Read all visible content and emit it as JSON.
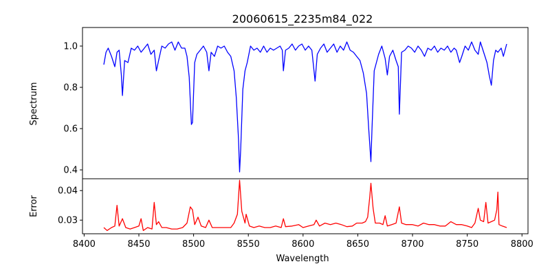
{
  "chart_data": [
    {
      "type": "line",
      "title": "20060615_2235m84_022",
      "xlabel": "",
      "ylabel": "Spectrum",
      "xlim": [
        8398.5,
        8805.5
      ],
      "ylim": [
        0.357,
        1.09
      ],
      "yticks": [
        0.4,
        0.6,
        0.8,
        1.0
      ],
      "ytick_labels": [
        "0.4",
        "0.6",
        "0.8",
        "1.0"
      ],
      "color": "#0000ff",
      "x": [
        8418,
        8420,
        8422,
        8425,
        8428,
        8430,
        8432,
        8434,
        8435,
        8437,
        8440,
        8443,
        8446,
        8449,
        8452,
        8455,
        8458,
        8461,
        8464,
        8466,
        8468,
        8471,
        8474,
        8477,
        8480,
        8483,
        8486,
        8489,
        8492,
        8494,
        8496,
        8498,
        8499,
        8501,
        8503,
        8506,
        8509,
        8512,
        8514,
        8516,
        8519,
        8522,
        8525,
        8528,
        8531,
        8534,
        8537,
        8539,
        8541,
        8542,
        8543,
        8545,
        8547,
        8549,
        8552,
        8555,
        8558,
        8561,
        8564,
        8567,
        8570,
        8573,
        8576,
        8579,
        8581,
        8582,
        8584,
        8587,
        8590,
        8593,
        8596,
        8599,
        8602,
        8605,
        8608,
        8611,
        8613,
        8616,
        8619,
        8622,
        8625,
        8628,
        8631,
        8634,
        8637,
        8640,
        8643,
        8646,
        8649,
        8652,
        8655,
        8658,
        8660,
        8662,
        8663,
        8665,
        8667,
        8669,
        8672,
        8675,
        8677,
        8679,
        8682,
        8685,
        8687,
        8688,
        8690,
        8693,
        8696,
        8699,
        8702,
        8705,
        8708,
        8711,
        8714,
        8717,
        8720,
        8723,
        8726,
        8729,
        8732,
        8735,
        8738,
        8740,
        8743,
        8745,
        8748,
        8751,
        8754,
        8757,
        8760,
        8762,
        8765,
        8768,
        8770,
        8772,
        8774,
        8776,
        8778,
        8781,
        8783,
        8786
      ],
      "y": [
        0.91,
        0.97,
        0.99,
        0.95,
        0.9,
        0.97,
        0.98,
        0.86,
        0.76,
        0.93,
        0.92,
        0.99,
        0.98,
        1.0,
        0.97,
        0.99,
        1.01,
        0.96,
        0.98,
        0.88,
        0.93,
        1.0,
        0.99,
        1.01,
        1.02,
        0.98,
        1.02,
        0.99,
        0.99,
        0.95,
        0.85,
        0.62,
        0.63,
        0.92,
        0.96,
        0.98,
        1.0,
        0.97,
        0.88,
        0.97,
        0.95,
        1.0,
        0.99,
        1.0,
        0.97,
        0.95,
        0.88,
        0.75,
        0.55,
        0.39,
        0.5,
        0.79,
        0.88,
        0.92,
        1.0,
        0.98,
        0.99,
        0.97,
        1.0,
        0.97,
        0.99,
        0.98,
        0.99,
        1.0,
        0.98,
        0.88,
        0.98,
        0.99,
        1.01,
        0.98,
        1.0,
        1.01,
        0.98,
        1.0,
        0.98,
        0.83,
        0.96,
        0.99,
        1.01,
        0.97,
        0.99,
        1.01,
        0.97,
        1.0,
        0.98,
        1.02,
        0.98,
        0.97,
        0.95,
        0.93,
        0.87,
        0.77,
        0.6,
        0.44,
        0.6,
        0.88,
        0.92,
        0.96,
        1.0,
        0.94,
        0.86,
        0.95,
        0.98,
        0.93,
        0.9,
        0.67,
        0.97,
        0.98,
        1.0,
        0.99,
        0.97,
        1.0,
        0.98,
        0.95,
        0.99,
        0.98,
        1.0,
        0.97,
        0.99,
        0.98,
        1.0,
        0.97,
        0.99,
        0.98,
        0.92,
        0.95,
        1.0,
        0.98,
        1.02,
        0.98,
        0.96,
        1.02,
        0.97,
        0.92,
        0.86,
        0.81,
        0.93,
        0.98,
        0.97,
        0.99,
        0.95,
        1.01
      ]
    },
    {
      "type": "line",
      "title": "",
      "xlabel": "Wavelength",
      "ylabel": "Error",
      "xlim": [
        8398.5,
        8805.5
      ],
      "ylim": [
        0.0254,
        0.044
      ],
      "yticks": [
        0.03,
        0.04
      ],
      "ytick_labels": [
        "0.03",
        "0.04"
      ],
      "xticks": [
        8400,
        8450,
        8500,
        8550,
        8600,
        8650,
        8700,
        8750,
        8800
      ],
      "xtick_labels": [
        "8400",
        "8450",
        "8500",
        "8550",
        "8600",
        "8650",
        "8700",
        "8750",
        "8800"
      ],
      "color": "#ff0000",
      "x": [
        8418,
        8421,
        8425,
        8428,
        8430,
        8432,
        8435,
        8438,
        8442,
        8446,
        8450,
        8452,
        8454,
        8458,
        8462,
        8464,
        8466,
        8468,
        8471,
        8475,
        8480,
        8485,
        8490,
        8494,
        8497,
        8499,
        8501,
        8504,
        8507,
        8511,
        8514,
        8517,
        8521,
        8525,
        8530,
        8534,
        8537,
        8540,
        8542,
        8544,
        8547,
        8548,
        8551,
        8555,
        8560,
        8565,
        8570,
        8575,
        8580,
        8582,
        8584,
        8590,
        8596,
        8600,
        8605,
        8610,
        8612,
        8615,
        8620,
        8625,
        8630,
        8635,
        8640,
        8645,
        8649,
        8654,
        8657,
        8659,
        8661,
        8662,
        8664,
        8666,
        8670,
        8673,
        8675,
        8677,
        8681,
        8685,
        8688,
        8690,
        8694,
        8700,
        8705,
        8710,
        8715,
        8720,
        8725,
        8730,
        8735,
        8740,
        8745,
        8750,
        8754,
        8757,
        8760,
        8762,
        8765,
        8767,
        8769,
        8772,
        8775,
        8777,
        8778,
        8779,
        8782,
        8786
      ],
      "y": [
        0.0275,
        0.0265,
        0.0275,
        0.028,
        0.035,
        0.028,
        0.0305,
        0.0275,
        0.027,
        0.0275,
        0.028,
        0.0305,
        0.0265,
        0.0275,
        0.027,
        0.036,
        0.0285,
        0.0295,
        0.0275,
        0.0275,
        0.027,
        0.027,
        0.0275,
        0.029,
        0.0345,
        0.0335,
        0.0285,
        0.031,
        0.028,
        0.0275,
        0.03,
        0.0275,
        0.0275,
        0.0275,
        0.0275,
        0.0275,
        0.029,
        0.032,
        0.0435,
        0.033,
        0.029,
        0.032,
        0.028,
        0.0275,
        0.028,
        0.0275,
        0.0275,
        0.028,
        0.0275,
        0.0305,
        0.0278,
        0.028,
        0.0285,
        0.0275,
        0.028,
        0.0285,
        0.03,
        0.028,
        0.029,
        0.0285,
        0.029,
        0.0285,
        0.0278,
        0.028,
        0.029,
        0.029,
        0.0295,
        0.031,
        0.038,
        0.0425,
        0.034,
        0.029,
        0.029,
        0.0285,
        0.0315,
        0.028,
        0.0285,
        0.029,
        0.0345,
        0.029,
        0.0285,
        0.0285,
        0.028,
        0.029,
        0.0285,
        0.0285,
        0.028,
        0.028,
        0.0295,
        0.0285,
        0.0285,
        0.028,
        0.0275,
        0.029,
        0.034,
        0.03,
        0.0295,
        0.036,
        0.029,
        0.0295,
        0.03,
        0.0335,
        0.0395,
        0.0285,
        0.028,
        0.0275
      ]
    }
  ]
}
